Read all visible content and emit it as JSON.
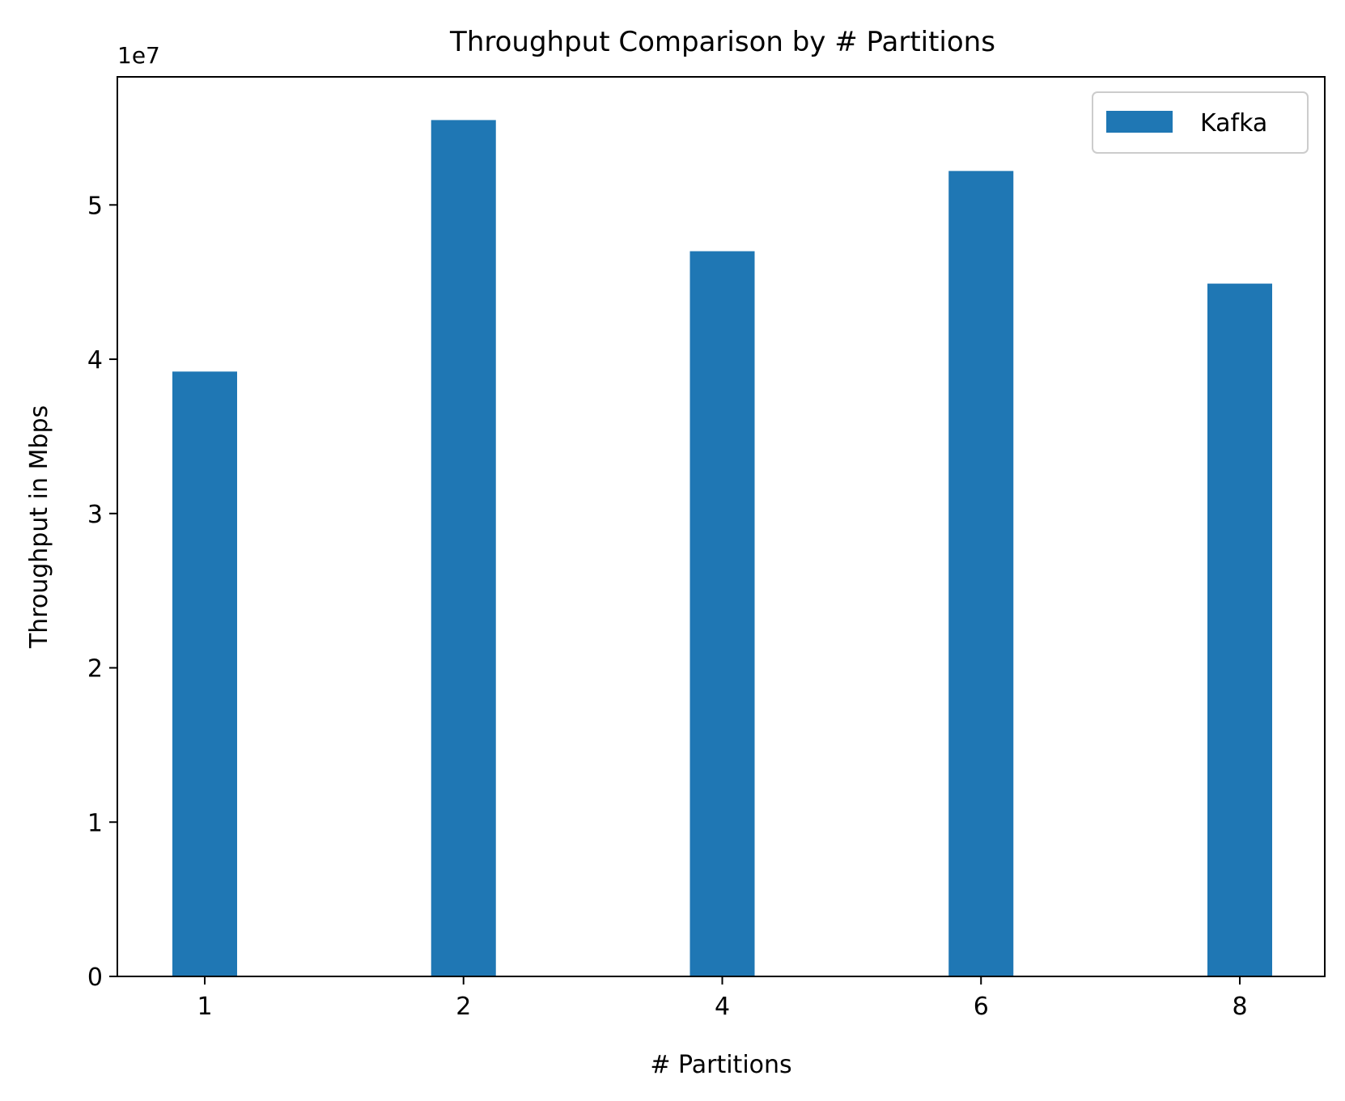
{
  "chart_data": {
    "type": "bar",
    "title": "Throughput Comparison by # Partitions",
    "xlabel": "# Partitions",
    "ylabel": "Throughput in Mbps",
    "offset_label": "1e7",
    "categories": [
      "1",
      "2",
      "4",
      "6",
      "8"
    ],
    "series": [
      {
        "name": "Kafka",
        "color": "#1f77b4",
        "values": [
          39200000,
          55500000,
          47000000,
          52200000,
          44900000
        ]
      }
    ],
    "ylim": [
      0,
      58300000
    ],
    "yticks": [
      0,
      10000000,
      20000000,
      30000000,
      40000000,
      50000000
    ],
    "ytick_labels": [
      "0",
      "1",
      "2",
      "3",
      "4",
      "5"
    ],
    "legend_position": "top-right",
    "grid": false
  }
}
